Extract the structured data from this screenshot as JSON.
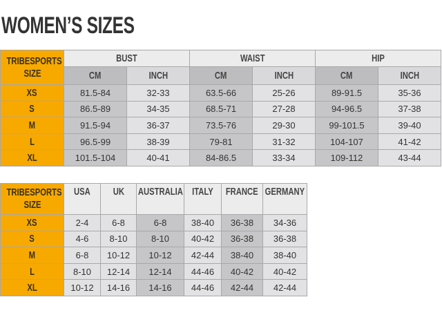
{
  "title": "WOMEN’S SIZES",
  "table1": {
    "corner": "TRIBESPORTS SIZE",
    "groups": [
      "BUST",
      "WAIST",
      "HIP"
    ],
    "subheaders": [
      "CM",
      "INCH",
      "CM",
      "INCH",
      "CM",
      "INCH"
    ],
    "rows": [
      [
        "XS",
        "81.5-84",
        "32-33",
        "63.5-66",
        "25-26",
        "89-91.5",
        "35-36"
      ],
      [
        "S",
        "86.5-89",
        "34-35",
        "68.5-71",
        "27-28",
        "94-96.5",
        "37-38"
      ],
      [
        "M",
        "91.5-94",
        "36-37",
        "73.5-76",
        "29-30",
        "99-101.5",
        "39-40"
      ],
      [
        "L",
        "96.5-99",
        "38-39",
        "79-81",
        "31-32",
        "104-107",
        "41-42"
      ],
      [
        "XL",
        "101.5-104",
        "40-41",
        "84-86.5",
        "33-34",
        "109-112",
        "43-44"
      ]
    ]
  },
  "table2": {
    "corner": "TRIBESPORTS SIZE",
    "headers": [
      "USA",
      "UK",
      "AUSTRALIA",
      "ITALY",
      "FRANCE",
      "GERMANY"
    ],
    "rows": [
      [
        "XS",
        "2-4",
        "6-8",
        "6-8",
        "38-40",
        "36-38",
        "34-36"
      ],
      [
        "S",
        "4-6",
        "8-10",
        "8-10",
        "40-42",
        "36-38",
        "36-38"
      ],
      [
        "M",
        "6-8",
        "10-12",
        "10-12",
        "42-44",
        "38-40",
        "38-40"
      ],
      [
        "L",
        "8-10",
        "12-14",
        "12-14",
        "44-46",
        "40-42",
        "40-42"
      ],
      [
        "XL",
        "10-12",
        "14-16",
        "14-16",
        "44-46",
        "42-44",
        "42-44"
      ]
    ]
  }
}
